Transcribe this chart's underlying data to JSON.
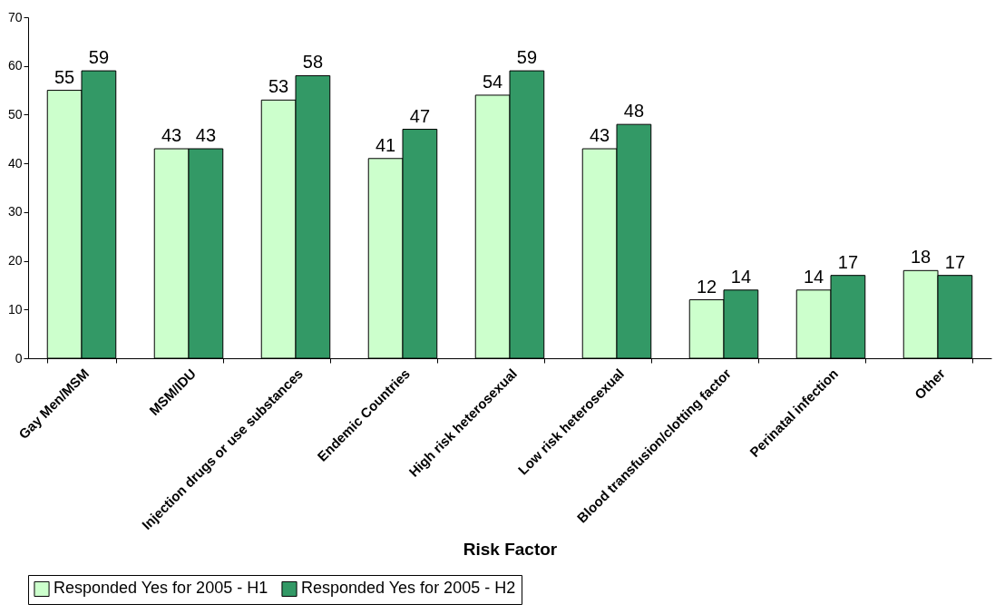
{
  "chart_data": {
    "type": "bar",
    "xlabel": "Risk Factor",
    "categories": [
      "Gay Men/MSM",
      "MSM/IDU",
      "Injection drugs or use substances",
      "Endemic Countries",
      "High risk heterosexual",
      "Low risk heterosexual",
      "Blood transfusion/clotting factor",
      "Perinatal infection",
      "Other"
    ],
    "series": [
      {
        "name": "Responded Yes for 2005 - H1",
        "color": "#ccffcc",
        "values": [
          55,
          43,
          53,
          41,
          54,
          43,
          12,
          14,
          18
        ]
      },
      {
        "name": "Responded Yes for 2005 - H2",
        "color": "#339966",
        "values": [
          59,
          43,
          58,
          47,
          59,
          48,
          14,
          17,
          17
        ]
      }
    ],
    "ylim": [
      0,
      70
    ],
    "yticks": [
      0,
      10,
      20,
      30,
      40,
      50,
      60,
      70
    ],
    "data_labels": true,
    "legend": "bottom"
  }
}
